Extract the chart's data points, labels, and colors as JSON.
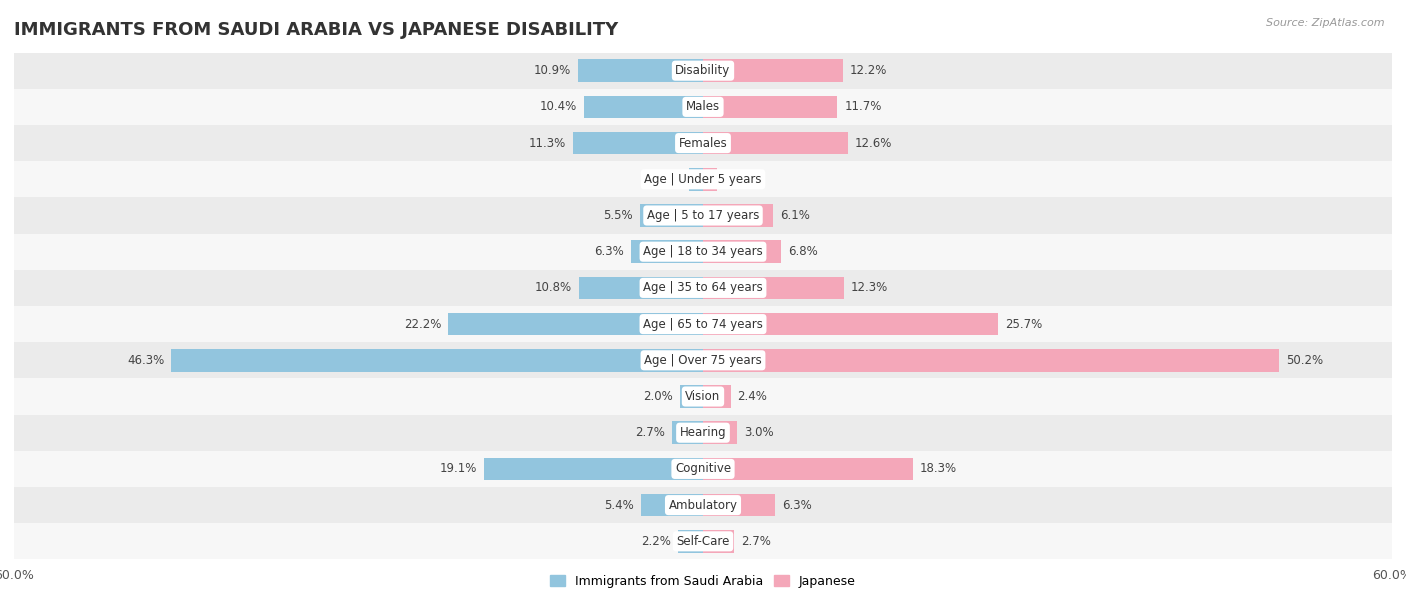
{
  "title": "IMMIGRANTS FROM SAUDI ARABIA VS JAPANESE DISABILITY",
  "source": "Source: ZipAtlas.com",
  "categories": [
    "Disability",
    "Males",
    "Females",
    "Age | Under 5 years",
    "Age | 5 to 17 years",
    "Age | 18 to 34 years",
    "Age | 35 to 64 years",
    "Age | 65 to 74 years",
    "Age | Over 75 years",
    "Vision",
    "Hearing",
    "Cognitive",
    "Ambulatory",
    "Self-Care"
  ],
  "saudi_values": [
    10.9,
    10.4,
    11.3,
    1.2,
    5.5,
    6.3,
    10.8,
    22.2,
    46.3,
    2.0,
    2.7,
    19.1,
    5.4,
    2.2
  ],
  "japanese_values": [
    12.2,
    11.7,
    12.6,
    1.2,
    6.1,
    6.8,
    12.3,
    25.7,
    50.2,
    2.4,
    3.0,
    18.3,
    6.3,
    2.7
  ],
  "saudi_color": "#92c5de",
  "japanese_color": "#f4a7b9",
  "saudi_label": "Immigrants from Saudi Arabia",
  "japanese_label": "Japanese",
  "xlim": 60.0,
  "row_color_even": "#ebebeb",
  "row_color_odd": "#f7f7f7",
  "title_fontsize": 13,
  "label_fontsize": 8.5,
  "value_fontsize": 8.5
}
